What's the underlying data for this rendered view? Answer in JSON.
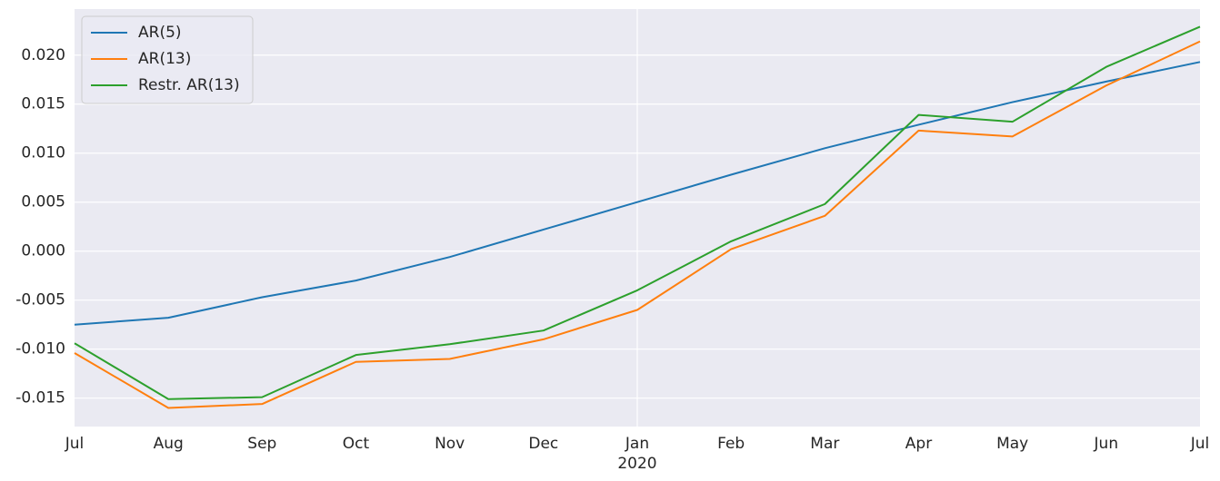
{
  "chart_data": {
    "type": "line",
    "categories": [
      "Jul",
      "Aug",
      "Sep",
      "Oct",
      "Nov",
      "Dec",
      "Jan",
      "Feb",
      "Mar",
      "Apr",
      "May",
      "Jun",
      "Jul"
    ],
    "x_sublabels": [
      null,
      null,
      null,
      null,
      null,
      null,
      "2020",
      null,
      null,
      null,
      null,
      null,
      null
    ],
    "x_grid": [
      false,
      false,
      false,
      false,
      false,
      false,
      true,
      false,
      false,
      false,
      false,
      false,
      false
    ],
    "series": [
      {
        "name": "AR(5)",
        "color": "#1f77b4",
        "values": [
          -0.0075,
          -0.0068,
          -0.0047,
          -0.003,
          -0.0006,
          0.0022,
          0.005,
          0.0078,
          0.0105,
          0.0129,
          0.0152,
          0.0173,
          0.0193
        ]
      },
      {
        "name": "AR(13)",
        "color": "#ff7f0e",
        "values": [
          -0.0104,
          -0.016,
          -0.0156,
          -0.0113,
          -0.011,
          -0.009,
          -0.006,
          0.0002,
          0.0036,
          0.0123,
          0.0117,
          0.0169,
          0.0214
        ]
      },
      {
        "name": "Restr. AR(13)",
        "color": "#2ca02c",
        "values": [
          -0.0094,
          -0.0151,
          -0.0149,
          -0.0106,
          -0.0095,
          -0.0081,
          -0.004,
          0.001,
          0.0048,
          0.0139,
          0.0132,
          0.0188,
          0.0229
        ]
      }
    ],
    "ylim": [
      -0.0179,
      0.0247
    ],
    "yticks": [
      {
        "value": -0.015,
        "label": "-0.015"
      },
      {
        "value": -0.01,
        "label": "-0.010"
      },
      {
        "value": -0.005,
        "label": "-0.005"
      },
      {
        "value": 0,
        "label": "0.000"
      },
      {
        "value": 0.005,
        "label": "0.005"
      },
      {
        "value": 0.01,
        "label": "0.010"
      },
      {
        "value": 0.015,
        "label": "0.015"
      },
      {
        "value": 0.02,
        "label": "0.020"
      }
    ],
    "grid": true,
    "legend": "upper left",
    "background": "#eaeaf2"
  }
}
